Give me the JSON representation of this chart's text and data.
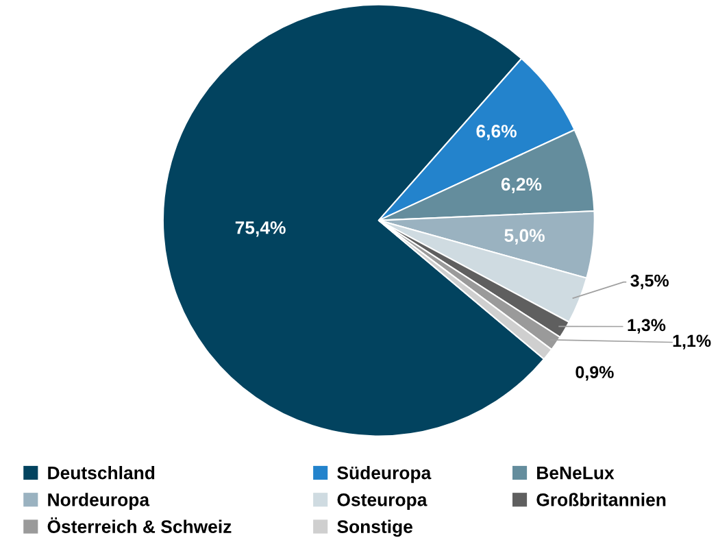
{
  "chart_data": {
    "type": "pie",
    "categories": [
      "Deutschland",
      "Südeuropa",
      "BeNeLux",
      "Nordeuropa",
      "Osteuropa",
      "Großbritannien",
      "Österreich & Schweiz",
      "Sonstige"
    ],
    "values": [
      75.4,
      6.6,
      6.2,
      5.0,
      3.5,
      1.3,
      1.1,
      0.9
    ],
    "colors": [
      "#02435f",
      "#2383cc",
      "#648d9d",
      "#9ab2c0",
      "#cfdbe1",
      "#5f5f5f",
      "#9a9a9a",
      "#cfcfcf"
    ],
    "value_labels": [
      "75,4%",
      "6,6%",
      "6,2%",
      "5,0%",
      "3,5%",
      "1,3%",
      "1,1%",
      "0,9%"
    ],
    "legend": "bottom"
  }
}
